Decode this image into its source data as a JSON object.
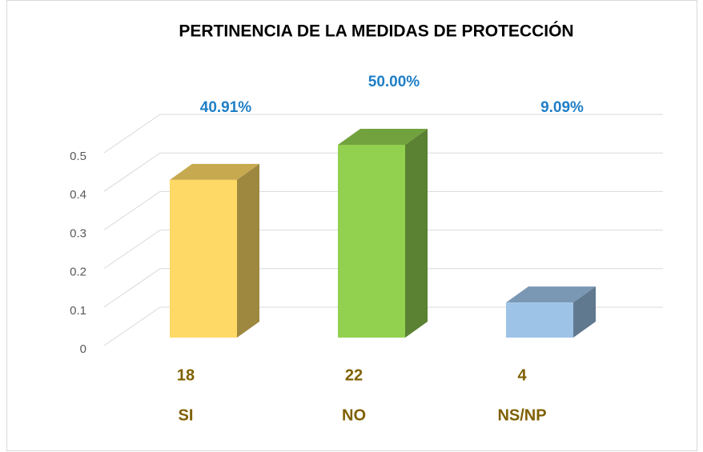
{
  "chart_data": {
    "type": "bar3d",
    "title": "PERTINENCIA DE LA MEDIDAS DE PROTECCIÓN",
    "categories": [
      "SI",
      "NO",
      "NS/NP"
    ],
    "counts": [
      18,
      22,
      4
    ],
    "values": [
      0.4091,
      0.5,
      0.0909
    ],
    "value_labels": [
      "40.91%",
      "50.00%",
      "9.09%"
    ],
    "colors": [
      "#ffd966",
      "#92d050",
      "#9dc3e6"
    ],
    "ylim": [
      0,
      0.5
    ],
    "yticks": [
      0,
      0.1,
      0.2,
      0.3,
      0.4,
      0.5
    ],
    "grid": true
  }
}
